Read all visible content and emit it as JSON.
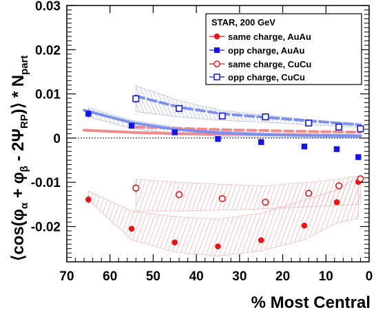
{
  "chart_data": {
    "type": "scatter",
    "title": "",
    "xlabel": "% Most Central",
    "ylabel_parts": {
      "open": "⟨cos(φ",
      "sub_alpha": "α",
      "plus": " + φ",
      "sub_beta": "β",
      "minus": " - 2Ψ",
      "sub_rp": "RP",
      "close": ")⟩ * N",
      "sub_part": "part"
    },
    "xlim": [
      70,
      0
    ],
    "ylim": [
      -0.028,
      0.03
    ],
    "x_ticks": [
      70,
      60,
      50,
      40,
      30,
      20,
      10,
      0
    ],
    "x_tick_labels": [
      "70",
      "60",
      "50",
      "40",
      "30",
      "20",
      "10",
      "0"
    ],
    "y_ticks": [
      0.03,
      0.02,
      0.01,
      0,
      -0.01,
      -0.02
    ],
    "y_tick_labels": [
      "0.03",
      "0.02",
      "0.01",
      "0",
      "-0.01",
      "-0.02"
    ],
    "zero_line": true,
    "grid": false,
    "legend": {
      "placement": "top-right",
      "header": "STAR, 200 GeV",
      "entries": [
        "same charge, AuAu",
        "opp charge, AuAu",
        "same charge, CuCu",
        "opp charge, CuCu"
      ]
    },
    "colors": {
      "red": "#ee1111",
      "blue": "#1414ee",
      "red_band": "#f2a6a6",
      "blue_band": "#9ab0e8"
    },
    "series": [
      {
        "name": "same charge, AuAu",
        "marker": "filled-circle",
        "color": "#ee1111",
        "x": [
          65,
          55,
          45,
          35,
          25,
          15,
          7.5,
          2.5
        ],
        "y": [
          -0.0139,
          -0.0205,
          -0.0236,
          -0.0245,
          -0.0231,
          -0.0198,
          -0.0145,
          -0.0099
        ],
        "yerr": [
          0.0008,
          0.0005,
          0.0004,
          0.0004,
          0.0004,
          0.0004,
          0.0005,
          0.0006
        ],
        "band_x": [
          65,
          55,
          45,
          35,
          25,
          15,
          7.5,
          2.5
        ],
        "band_low": [
          -0.014,
          -0.023,
          -0.0258,
          -0.0267,
          -0.0255,
          -0.023,
          -0.0192,
          -0.0182
        ],
        "band_high": [
          -0.012,
          -0.0165,
          -0.0178,
          -0.0183,
          -0.017,
          -0.014,
          -0.0117,
          -0.0087
        ]
      },
      {
        "name": "opp charge, AuAu",
        "marker": "filled-square",
        "color": "#1414ee",
        "x": [
          65,
          55,
          45,
          35,
          25,
          15,
          7.5,
          2.5
        ],
        "y": [
          0.0055,
          0.0028,
          0.0013,
          -0.0002,
          -0.0009,
          -0.0019,
          -0.0025,
          -0.0043
        ],
        "yerr": [
          0.0008,
          0.0005,
          0.0004,
          0.0004,
          0.0004,
          0.0004,
          0.0005,
          0.0006
        ],
        "band_x": [
          65,
          55,
          45,
          35,
          25,
          15,
          7.5,
          2.5
        ],
        "band_low": [
          0.0048,
          0.0022,
          0.001,
          0.0004,
          0.0002,
          0.0001,
          0.0001,
          0.0001
        ],
        "band_high": [
          0.0068,
          0.004,
          0.0025,
          0.0016,
          0.0012,
          0.001,
          0.0009,
          0.0008
        ]
      },
      {
        "name": "same charge, CuCu",
        "marker": "open-circle",
        "color": "#ee1111",
        "x": [
          54,
          44,
          34,
          24,
          14,
          7,
          2
        ],
        "y": [
          -0.0113,
          -0.0128,
          -0.0137,
          -0.0145,
          -0.0125,
          -0.0108,
          -0.0092
        ],
        "yerr": [
          0.0009,
          0.0006,
          0.0005,
          0.0005,
          0.0005,
          0.0005,
          0.0005
        ],
        "band_x": [
          54,
          44,
          34,
          24,
          14,
          7,
          2
        ],
        "band_low": [
          -0.0165,
          -0.0165,
          -0.0163,
          -0.016,
          -0.0155,
          -0.0152,
          -0.015
        ],
        "band_high": [
          -0.0093,
          -0.01,
          -0.0105,
          -0.0108,
          -0.01,
          -0.0093,
          -0.0085
        ]
      },
      {
        "name": "opp charge, CuCu",
        "marker": "open-square",
        "color": "#1414ee",
        "x": [
          54,
          44,
          34,
          24,
          14,
          7,
          2
        ],
        "y": [
          0.0089,
          0.0067,
          0.005,
          0.0048,
          0.0034,
          0.0025,
          0.0021
        ],
        "yerr": [
          0.0009,
          0.0006,
          0.0005,
          0.0005,
          0.0005,
          0.0005,
          0.0005
        ],
        "band_x": [
          54,
          44,
          34,
          24,
          14,
          7,
          2
        ],
        "band_low": [
          0.006,
          0.0048,
          0.004,
          0.0036,
          0.003,
          0.0027,
          0.0024
        ],
        "band_high": [
          0.0118,
          0.0085,
          0.0062,
          0.0052,
          0.0042,
          0.0036,
          0.0032
        ]
      }
    ],
    "model_curves": [
      {
        "color": "#ee1111",
        "style": "solid",
        "x": [
          66,
          55,
          45,
          35,
          25,
          15,
          7,
          2
        ],
        "y": [
          0.0018,
          0.0013,
          0.001,
          0.0009,
          0.0008,
          0.0007,
          0.0006,
          0.0005
        ]
      },
      {
        "color": "#ee1111",
        "style": "dashed",
        "x": [
          54,
          44,
          34,
          24,
          14,
          7,
          2
        ],
        "y": [
          0.0025,
          0.0022,
          0.0019,
          0.0017,
          0.0015,
          0.0014,
          0.0013
        ]
      },
      {
        "color": "#1414ee",
        "style": "solid",
        "x": [
          66,
          55,
          45,
          35,
          25,
          15,
          7,
          2
        ],
        "y": [
          0.0063,
          0.0035,
          0.002,
          0.0012,
          0.0008,
          0.0006,
          0.0005,
          0.0005
        ]
      },
      {
        "color": "#1414ee",
        "style": "dashed",
        "x": [
          54,
          44,
          34,
          24,
          14,
          7,
          2
        ],
        "y": [
          0.0095,
          0.007,
          0.0055,
          0.0047,
          0.0039,
          0.0034,
          0.003
        ]
      }
    ]
  }
}
